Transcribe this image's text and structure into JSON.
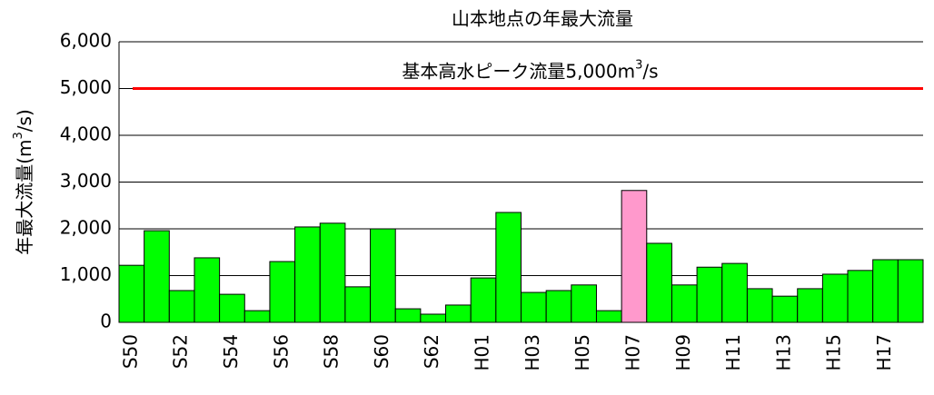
{
  "chart_data": {
    "type": "bar",
    "title": "山本地点の年最大流量",
    "y_label_parts": [
      "年最大流量(m",
      "3",
      "/s)"
    ],
    "categories": [
      "S50",
      null,
      "S52",
      null,
      "S54",
      null,
      "S56",
      null,
      "S58",
      null,
      "S60",
      null,
      "S62",
      null,
      "H01",
      null,
      "H03",
      null,
      "H05",
      null,
      "H07",
      null,
      "H09",
      null,
      "H11",
      null,
      "H13",
      null,
      "H15",
      null,
      "H17",
      null
    ],
    "values": [
      1220,
      1960,
      680,
      1380,
      600,
      250,
      1300,
      2040,
      2120,
      760,
      2000,
      290,
      175,
      370,
      950,
      2350,
      640,
      680,
      800,
      250,
      2820,
      1690,
      800,
      1180,
      1260,
      720,
      560,
      720,
      1030,
      1110,
      1340,
      1340
    ],
    "colors": [
      "#00ff00",
      "#00ff00",
      "#00ff00",
      "#00ff00",
      "#00ff00",
      "#00ff00",
      "#00ff00",
      "#00ff00",
      "#00ff00",
      "#00ff00",
      "#00ff00",
      "#00ff00",
      "#00ff00",
      "#00ff00",
      "#00ff00",
      "#00ff00",
      "#00ff00",
      "#00ff00",
      "#00ff00",
      "#00ff00",
      "#ff99cc",
      "#00ff00",
      "#00ff00",
      "#00ff00",
      "#00ff00",
      "#00ff00",
      "#00ff00",
      "#00ff00",
      "#00ff00",
      "#00ff00",
      "#00ff00",
      "#00ff00"
    ],
    "ylim": [
      0,
      6000
    ],
    "yticks": [
      0,
      {
        "value": 1000,
        "label": "1,000"
      },
      {
        "value": 2000,
        "label": "2,000"
      },
      {
        "value": 3000,
        "label": "3,000"
      },
      {
        "value": 4000,
        "label": "4,000"
      },
      {
        "value": 5000,
        "label": "5,000"
      },
      {
        "value": 6000,
        "label": "6,000"
      }
    ],
    "grid": true,
    "reference_line": {
      "value": 5000,
      "color": "#ff0000",
      "label_parts": [
        "基本高水ピーク流量5,000m",
        "3",
        "/s"
      ]
    }
  }
}
